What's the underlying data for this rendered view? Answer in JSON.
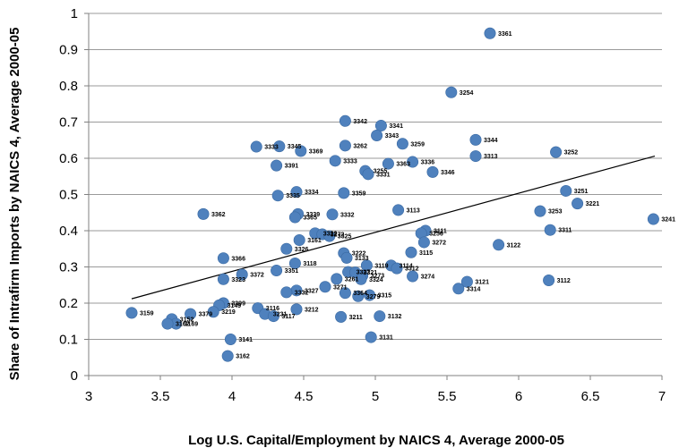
{
  "chart_data": {
    "type": "scatter",
    "xlabel": "Log U.S. Capital/Employment by NAICS 4, Average 2000-05",
    "ylabel": "Share of Intrafirm Imports by NAICS 4, Average 2000-05",
    "xlim": [
      3,
      7
    ],
    "ylim": [
      0,
      1
    ],
    "x_ticks": [
      3,
      3.5,
      4,
      4.5,
      5,
      5.5,
      6,
      6.5,
      7
    ],
    "x_tick_labels": [
      "3",
      "3.5",
      "4",
      "4.5",
      "5",
      "5.5",
      "6",
      "6.5",
      "7"
    ],
    "y_ticks": [
      0,
      0.1,
      0.2,
      0.3,
      0.4,
      0.5,
      0.6,
      0.7,
      0.8,
      0.9,
      1
    ],
    "y_tick_labels": [
      "0",
      "0.1",
      "0.2",
      "0.3",
      "0.4",
      "0.5",
      "0.6",
      "0.7",
      "0.8",
      "0.9",
      "1"
    ],
    "grid": "horizontal",
    "marker_color": "#4f81bd",
    "trendline": {
      "x": [
        3.3,
        6.95
      ],
      "y": [
        0.212,
        0.606
      ]
    },
    "points": [
      {
        "label": "3361",
        "x": 5.8,
        "y": 0.945
      },
      {
        "label": "3254",
        "x": 5.53,
        "y": 0.782
      },
      {
        "label": "3342",
        "x": 4.79,
        "y": 0.703
      },
      {
        "label": "3341",
        "x": 5.04,
        "y": 0.69
      },
      {
        "label": "3343",
        "x": 5.01,
        "y": 0.663
      },
      {
        "label": "3344",
        "x": 5.7,
        "y": 0.651
      },
      {
        "label": "3259",
        "x": 5.19,
        "y": 0.64
      },
      {
        "label": "3262",
        "x": 4.79,
        "y": 0.635
      },
      {
        "label": "3333",
        "x": 4.17,
        "y": 0.632
      },
      {
        "label": "3345",
        "x": 4.33,
        "y": 0.633
      },
      {
        "label": "3369",
        "x": 4.48,
        "y": 0.62
      },
      {
        "label": "3252",
        "x": 6.26,
        "y": 0.617
      },
      {
        "label": "3313",
        "x": 5.7,
        "y": 0.606
      },
      {
        "label": "3333",
        "x": 4.72,
        "y": 0.593
      },
      {
        "label": "3336",
        "x": 5.26,
        "y": 0.59
      },
      {
        "label": "3363",
        "x": 5.09,
        "y": 0.585
      },
      {
        "label": "3391",
        "x": 4.31,
        "y": 0.58
      },
      {
        "label": "3255",
        "x": 4.93,
        "y": 0.565
      },
      {
        "label": "3346",
        "x": 5.4,
        "y": 0.562
      },
      {
        "label": "3331",
        "x": 4.95,
        "y": 0.556
      },
      {
        "label": "3251",
        "x": 6.33,
        "y": 0.51
      },
      {
        "label": "3334",
        "x": 4.45,
        "y": 0.507
      },
      {
        "label": "3359",
        "x": 4.78,
        "y": 0.504
      },
      {
        "label": "3335",
        "x": 4.32,
        "y": 0.497
      },
      {
        "label": "3221",
        "x": 6.41,
        "y": 0.475
      },
      {
        "label": "3113",
        "x": 5.16,
        "y": 0.457
      },
      {
        "label": "3253",
        "x": 6.15,
        "y": 0.454
      },
      {
        "label": "3362",
        "x": 3.8,
        "y": 0.446
      },
      {
        "label": "3339",
        "x": 4.46,
        "y": 0.446
      },
      {
        "label": "3332",
        "x": 4.7,
        "y": 0.445
      },
      {
        "label": "3365",
        "x": 4.44,
        "y": 0.437
      },
      {
        "label": "3241",
        "x": 6.94,
        "y": 0.432
      },
      {
        "label": "3311",
        "x": 6.22,
        "y": 0.402
      },
      {
        "label": "3111",
        "x": 5.35,
        "y": 0.4
      },
      {
        "label": "3256",
        "x": 5.32,
        "y": 0.393
      },
      {
        "label": "3322",
        "x": 4.58,
        "y": 0.393
      },
      {
        "label": "3272",
        "x": 4.63,
        "y": 0.39
      },
      {
        "label": "3325",
        "x": 4.68,
        "y": 0.385
      },
      {
        "label": "3161",
        "x": 4.47,
        "y": 0.374
      },
      {
        "label": "3272",
        "x": 5.34,
        "y": 0.368
      },
      {
        "label": "3122",
        "x": 5.86,
        "y": 0.361
      },
      {
        "label": "3326",
        "x": 4.38,
        "y": 0.35
      },
      {
        "label": "3115",
        "x": 5.25,
        "y": 0.34
      },
      {
        "label": "3222",
        "x": 4.78,
        "y": 0.338
      },
      {
        "label": "3133",
        "x": 4.8,
        "y": 0.325
      },
      {
        "label": "3366",
        "x": 3.94,
        "y": 0.324
      },
      {
        "label": "3118",
        "x": 4.44,
        "y": 0.31
      },
      {
        "label": "3119",
        "x": 4.94,
        "y": 0.304
      },
      {
        "label": "3114",
        "x": 5.11,
        "y": 0.304
      },
      {
        "label": "3312",
        "x": 5.15,
        "y": 0.296
      },
      {
        "label": "3351",
        "x": 4.31,
        "y": 0.29
      },
      {
        "label": "3327",
        "x": 4.81,
        "y": 0.286
      },
      {
        "label": "3321",
        "x": 4.86,
        "y": 0.285
      },
      {
        "label": "3372",
        "x": 4.07,
        "y": 0.279
      },
      {
        "label": "3273",
        "x": 4.91,
        "y": 0.276
      },
      {
        "label": "3274",
        "x": 5.26,
        "y": 0.274
      },
      {
        "label": "3261",
        "x": 4.73,
        "y": 0.267
      },
      {
        "label": "3323",
        "x": 3.94,
        "y": 0.266
      },
      {
        "label": "3324",
        "x": 4.9,
        "y": 0.266
      },
      {
        "label": "3121",
        "x": 5.64,
        "y": 0.259
      },
      {
        "label": "3112",
        "x": 6.21,
        "y": 0.263
      },
      {
        "label": "3271",
        "x": 4.65,
        "y": 0.245
      },
      {
        "label": "3314",
        "x": 5.58,
        "y": 0.24
      },
      {
        "label": "3327",
        "x": 4.45,
        "y": 0.235
      },
      {
        "label": "3332",
        "x": 4.38,
        "y": 0.23
      },
      {
        "label": "3364",
        "x": 4.79,
        "y": 0.228
      },
      {
        "label": "3315",
        "x": 4.96,
        "y": 0.222
      },
      {
        "label": "3279",
        "x": 4.88,
        "y": 0.219
      },
      {
        "label": "3399",
        "x": 3.94,
        "y": 0.2
      },
      {
        "label": "3149",
        "x": 3.91,
        "y": 0.194
      },
      {
        "label": "3116",
        "x": 4.18,
        "y": 0.186
      },
      {
        "label": "3212",
        "x": 4.45,
        "y": 0.183
      },
      {
        "label": "3219",
        "x": 3.87,
        "y": 0.176
      },
      {
        "label": "3159",
        "x": 3.3,
        "y": 0.173
      },
      {
        "label": "3379",
        "x": 3.71,
        "y": 0.17
      },
      {
        "label": "3231",
        "x": 4.23,
        "y": 0.17
      },
      {
        "label": "3117",
        "x": 4.29,
        "y": 0.164
      },
      {
        "label": "3211",
        "x": 4.76,
        "y": 0.162
      },
      {
        "label": "3132",
        "x": 5.03,
        "y": 0.164
      },
      {
        "label": "3152",
        "x": 3.58,
        "y": 0.156
      },
      {
        "label": "3169",
        "x": 3.61,
        "y": 0.143
      },
      {
        "label": "3162",
        "x": 3.55,
        "y": 0.143
      },
      {
        "label": "3131",
        "x": 4.97,
        "y": 0.106
      },
      {
        "label": "3141",
        "x": 3.99,
        "y": 0.1
      },
      {
        "label": "3162",
        "x": 3.97,
        "y": 0.054
      }
    ]
  }
}
